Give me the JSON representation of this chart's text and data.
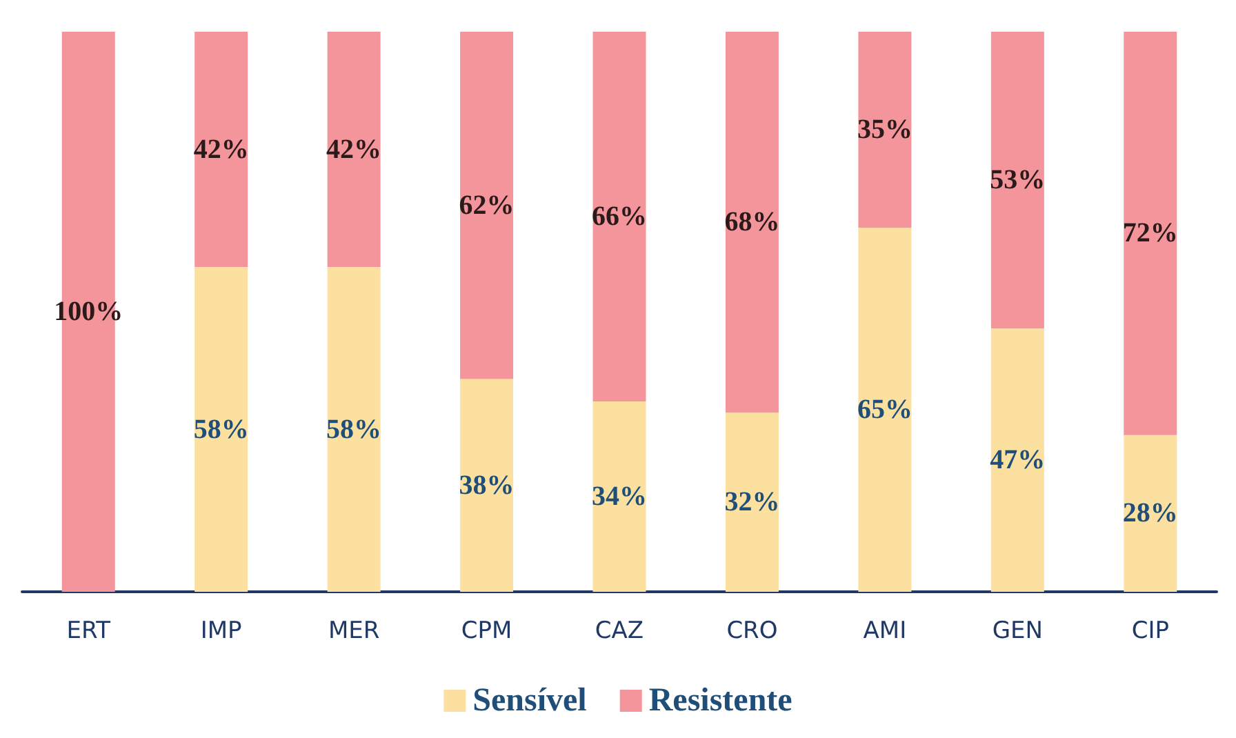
{
  "chart_data": {
    "type": "bar",
    "stacked": true,
    "categories": [
      "ERT",
      "IMP",
      "MER",
      "CPM",
      "CAZ",
      "CRO",
      "AMI",
      "GEN",
      "CIP"
    ],
    "series": [
      {
        "name": "Sensível",
        "color": "#fbe0a0",
        "values": [
          0,
          58,
          58,
          38,
          34,
          32,
          65,
          47,
          28
        ],
        "value_labels": [
          null,
          "58%",
          "58%",
          "38%",
          "34%",
          "32%",
          "65%",
          "47%",
          "28%"
        ]
      },
      {
        "name": "Resistente",
        "color": "#f3959a",
        "values": [
          100,
          42,
          42,
          62,
          66,
          68,
          35,
          53,
          72
        ],
        "value_labels": [
          "100%",
          "42%",
          "42%",
          "62%",
          "66%",
          "68%",
          "35%",
          "53%",
          "72%"
        ]
      }
    ],
    "legend": "bottom"
  }
}
